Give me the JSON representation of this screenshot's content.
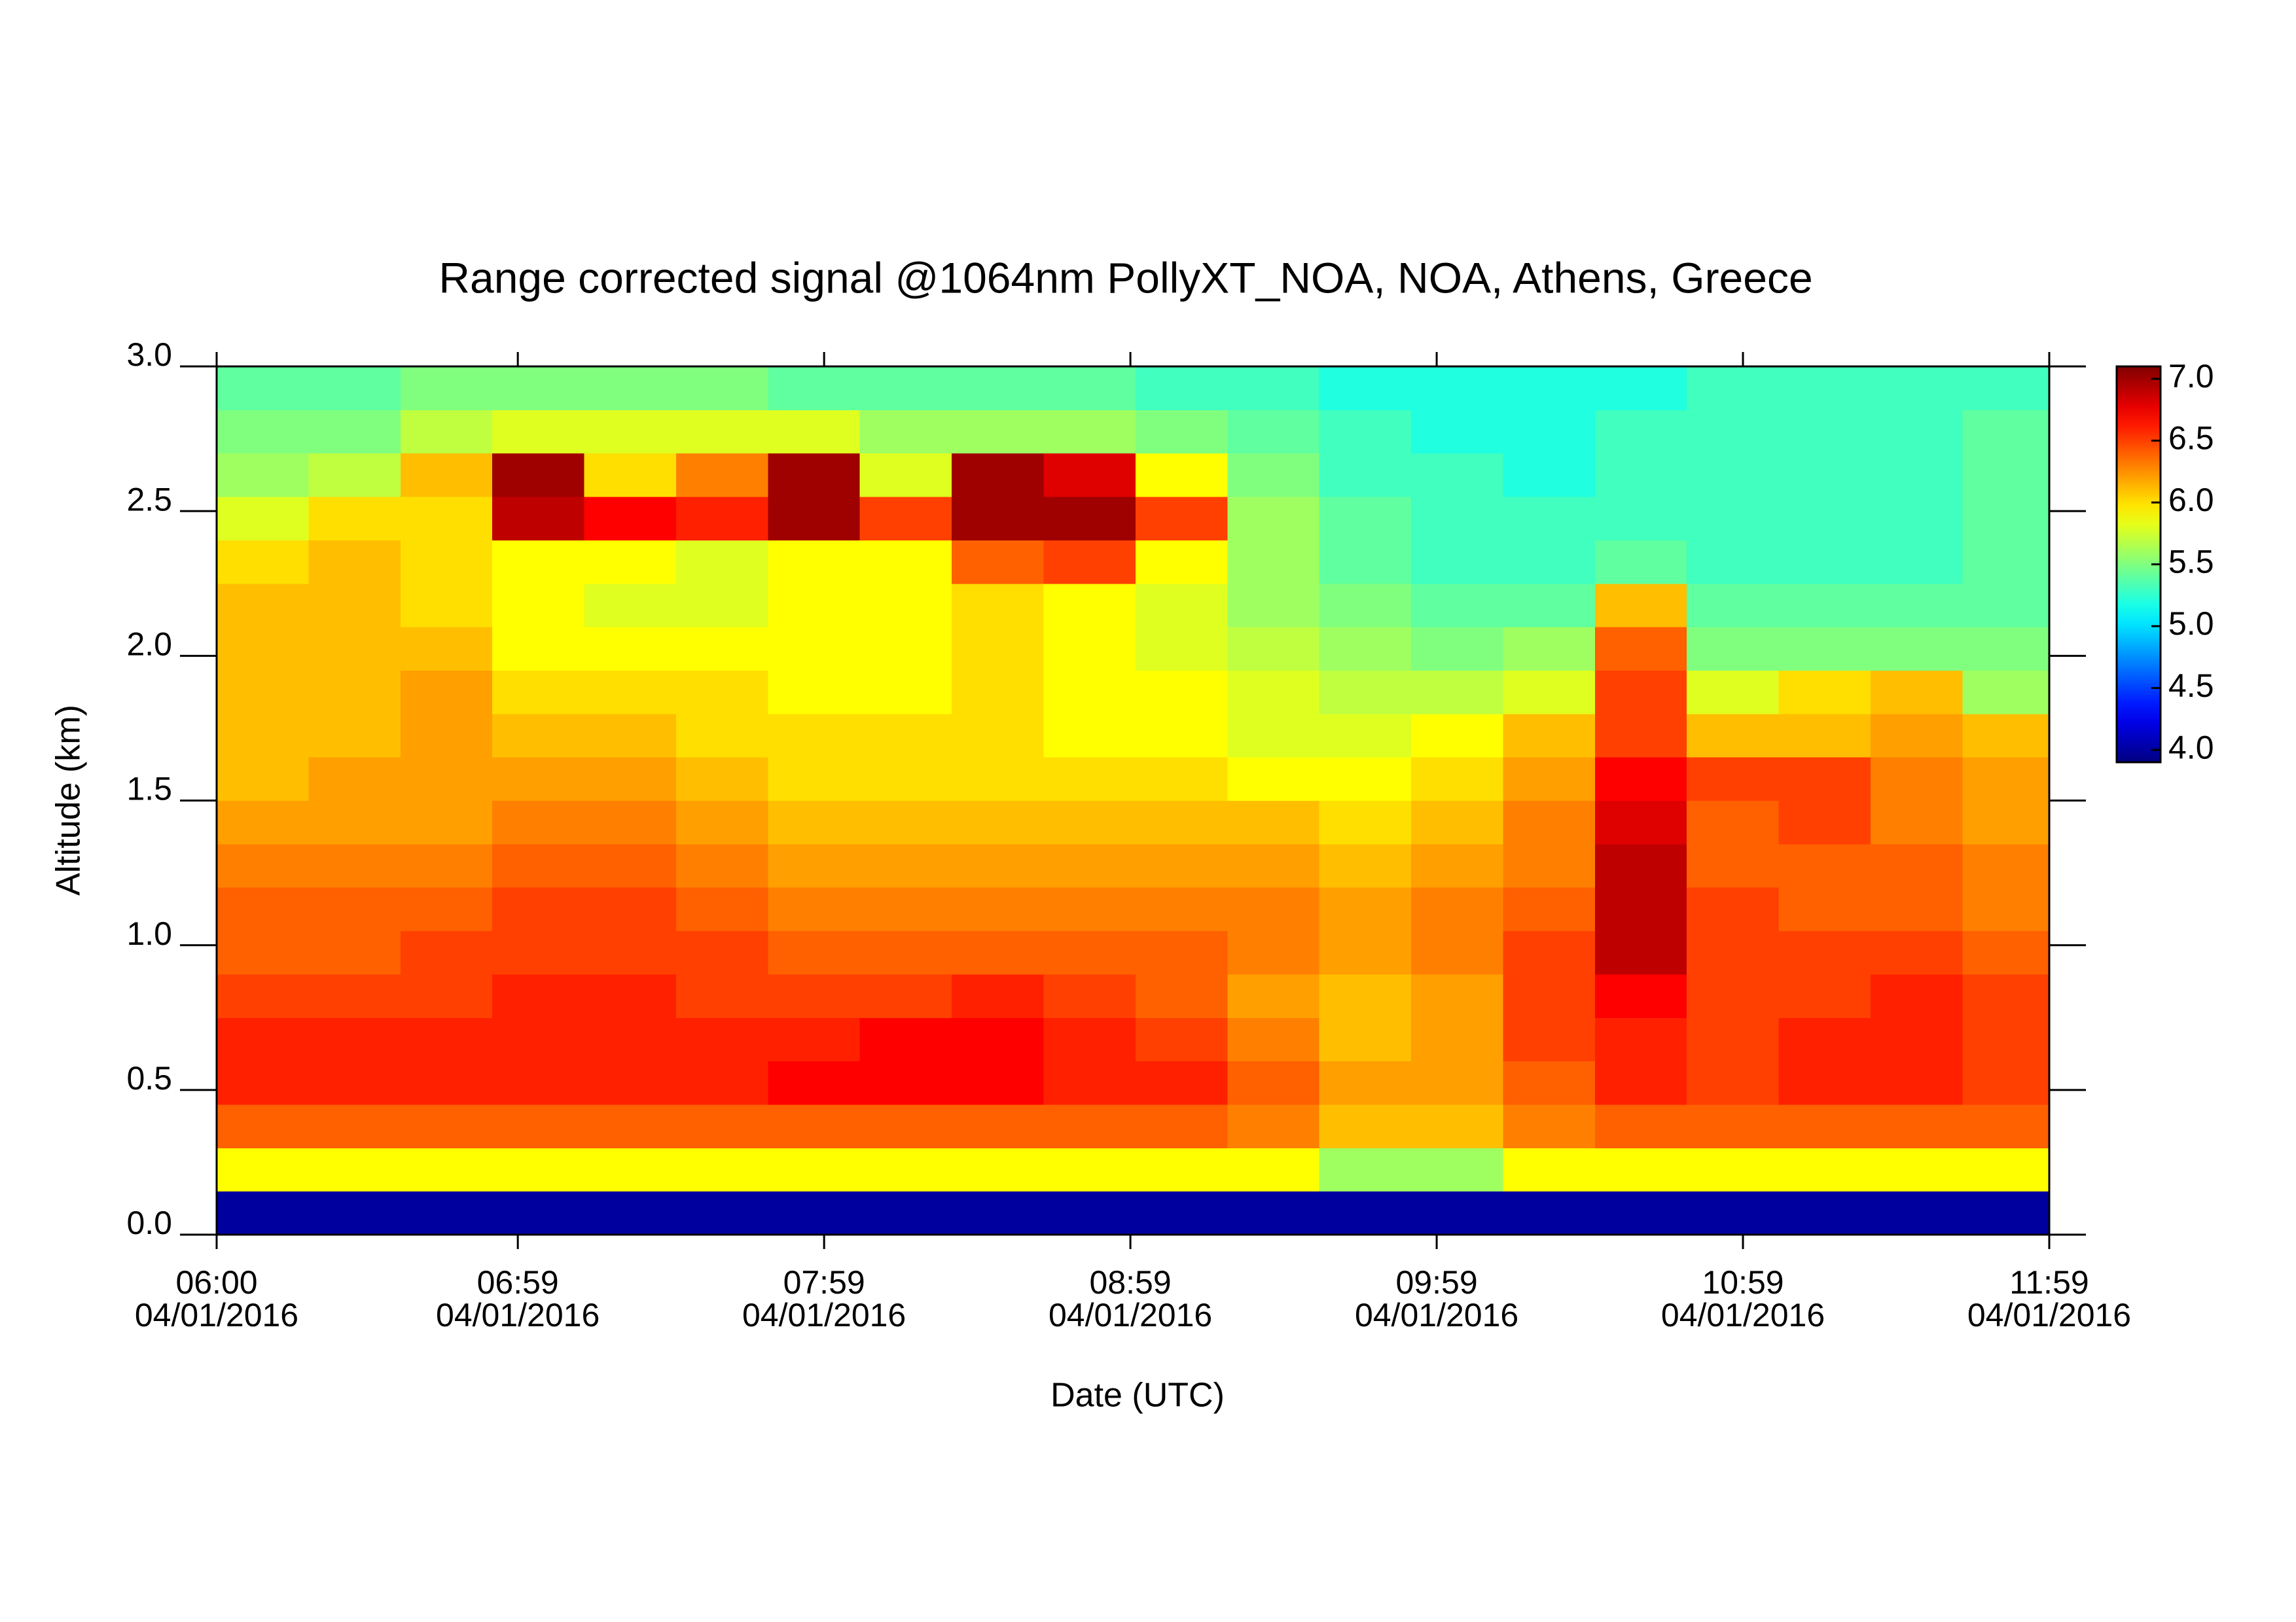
{
  "chart_data": {
    "type": "heatmap",
    "title": "Range corrected signal @1064nm  PollyXT_NOA, NOA, Athens, Greece",
    "xlabel": "Date (UTC)",
    "ylabel": "Altitude (km)",
    "colormap": "jet",
    "xlim": [
      "06:00",
      "11:59"
    ],
    "ylim": [
      0,
      3
    ],
    "xticks": [
      {
        "value": "06:00",
        "label": [
          "06:00",
          "04/01/2016"
        ]
      },
      {
        "value": "06:59",
        "label": [
          "06:59",
          "04/01/2016"
        ]
      },
      {
        "value": "07:59",
        "label": [
          "07:59",
          "04/01/2016"
        ]
      },
      {
        "value": "08:59",
        "label": [
          "08:59",
          "04/01/2016"
        ]
      },
      {
        "value": "09:59",
        "label": [
          "09:59",
          "04/01/2016"
        ]
      },
      {
        "value": "10:59",
        "label": [
          "10:59",
          "04/01/2016"
        ]
      },
      {
        "value": "11:59",
        "label": [
          "11:59",
          "04/01/2016"
        ]
      }
    ],
    "yticks": [
      {
        "value": 0,
        "label": "0.0"
      },
      0.5,
      {
        "value": 1,
        "label": "1.0"
      },
      1.5,
      {
        "value": 2,
        "label": "2.0"
      },
      2.5,
      {
        "value": 3,
        "label": "3.0"
      }
    ],
    "zlim": [
      3.9,
      7.1
    ],
    "zticks": [
      {
        "value": 4,
        "label": "4.0"
      },
      4.5,
      {
        "value": 5,
        "label": "5.0"
      },
      5.5,
      {
        "value": 6,
        "label": "6.0"
      },
      6.5,
      {
        "value": 7,
        "label": "7.0"
      }
    ],
    "x": [
      "06:00",
      "06:18",
      "06:36",
      "06:54",
      "07:12",
      "07:30",
      "07:48",
      "08:06",
      "08:24",
      "08:42",
      "09:00",
      "09:18",
      "09:36",
      "09:54",
      "10:12",
      "10:30",
      "10:48",
      "11:06",
      "11:24",
      "11:42"
    ],
    "y": [
      0,
      0.15,
      0.3,
      0.45,
      0.6,
      0.75,
      0.9,
      1.05,
      1.2,
      1.35,
      1.5,
      1.65,
      1.8,
      1.95,
      2.1,
      2.25,
      2.4,
      2.55,
      2.7,
      2.85
    ],
    "z": [
      [
        4.0,
        4.0,
        4.0,
        4.0,
        4.0,
        4.0,
        4.0,
        4.0,
        4.0,
        4.0,
        4.0,
        4.0,
        4.0,
        4.0,
        4.0,
        4.0,
        4.0,
        4.0,
        4.0,
        4.0
      ],
      [
        5.9,
        5.9,
        5.9,
        5.9,
        5.9,
        5.9,
        5.9,
        5.9,
        5.9,
        5.9,
        5.9,
        5.9,
        5.6,
        5.6,
        5.9,
        5.9,
        5.9,
        5.9,
        5.9,
        5.9
      ],
      [
        6.4,
        6.4,
        6.4,
        6.4,
        6.4,
        6.4,
        6.4,
        6.4,
        6.4,
        6.4,
        6.4,
        6.3,
        6.1,
        6.1,
        6.3,
        6.4,
        6.4,
        6.4,
        6.4,
        6.4
      ],
      [
        6.6,
        6.6,
        6.6,
        6.6,
        6.6,
        6.6,
        6.7,
        6.7,
        6.7,
        6.6,
        6.6,
        6.4,
        6.2,
        6.2,
        6.4,
        6.6,
        6.5,
        6.6,
        6.6,
        6.5
      ],
      [
        6.6,
        6.6,
        6.6,
        6.6,
        6.6,
        6.6,
        6.6,
        6.7,
        6.7,
        6.6,
        6.5,
        6.3,
        6.1,
        6.2,
        6.5,
        6.6,
        6.5,
        6.6,
        6.6,
        6.5
      ],
      [
        6.5,
        6.5,
        6.5,
        6.6,
        6.6,
        6.5,
        6.5,
        6.5,
        6.6,
        6.5,
        6.4,
        6.2,
        6.1,
        6.2,
        6.5,
        6.7,
        6.5,
        6.5,
        6.6,
        6.5
      ],
      [
        6.4,
        6.4,
        6.5,
        6.5,
        6.5,
        6.5,
        6.4,
        6.4,
        6.4,
        6.4,
        6.4,
        6.3,
        6.2,
        6.3,
        6.5,
        6.9,
        6.5,
        6.5,
        6.5,
        6.4
      ],
      [
        6.4,
        6.4,
        6.4,
        6.5,
        6.5,
        6.4,
        6.3,
        6.3,
        6.3,
        6.3,
        6.3,
        6.3,
        6.2,
        6.3,
        6.4,
        6.9,
        6.5,
        6.4,
        6.4,
        6.3
      ],
      [
        6.3,
        6.3,
        6.3,
        6.4,
        6.4,
        6.3,
        6.2,
        6.2,
        6.2,
        6.2,
        6.2,
        6.2,
        6.1,
        6.2,
        6.3,
        6.9,
        6.4,
        6.4,
        6.4,
        6.3
      ],
      [
        6.2,
        6.2,
        6.2,
        6.3,
        6.3,
        6.2,
        6.1,
        6.1,
        6.1,
        6.1,
        6.1,
        6.1,
        6.0,
        6.1,
        6.3,
        6.8,
        6.4,
        6.5,
        6.3,
        6.2
      ],
      [
        6.1,
        6.2,
        6.2,
        6.2,
        6.2,
        6.1,
        6.0,
        6.0,
        6.0,
        6.0,
        6.0,
        5.9,
        5.9,
        6.0,
        6.2,
        6.7,
        6.5,
        6.5,
        6.3,
        6.2
      ],
      [
        6.1,
        6.1,
        6.2,
        6.1,
        6.1,
        6.0,
        6.0,
        6.0,
        6.0,
        5.9,
        5.9,
        5.8,
        5.8,
        5.9,
        6.1,
        6.5,
        6.1,
        6.1,
        6.2,
        6.1
      ],
      [
        6.1,
        6.1,
        6.2,
        6.0,
        6.0,
        6.0,
        5.9,
        5.9,
        6.0,
        5.9,
        5.9,
        5.8,
        5.7,
        5.7,
        5.8,
        6.5,
        5.8,
        6.0,
        6.1,
        5.6
      ],
      [
        6.1,
        6.1,
        6.1,
        5.9,
        5.9,
        5.9,
        5.9,
        5.9,
        6.0,
        5.9,
        5.8,
        5.7,
        5.6,
        5.5,
        5.6,
        6.4,
        5.5,
        5.5,
        5.5,
        5.5
      ],
      [
        6.1,
        6.1,
        6.0,
        5.9,
        5.8,
        5.8,
        5.9,
        5.9,
        6.0,
        5.9,
        5.8,
        5.6,
        5.5,
        5.4,
        5.4,
        6.1,
        5.4,
        5.4,
        5.4,
        5.4
      ],
      [
        6.0,
        6.1,
        6.0,
        5.9,
        5.9,
        5.8,
        5.9,
        5.9,
        6.4,
        6.5,
        5.9,
        5.6,
        5.4,
        5.3,
        5.3,
        5.4,
        5.3,
        5.3,
        5.3,
        5.4
      ],
      [
        5.8,
        6.0,
        6.0,
        6.9,
        6.7,
        6.6,
        7.0,
        6.5,
        7.0,
        7.0,
        6.5,
        5.6,
        5.4,
        5.3,
        5.3,
        5.3,
        5.3,
        5.3,
        5.3,
        5.4
      ],
      [
        5.6,
        5.7,
        6.1,
        7.0,
        6.0,
        6.3,
        7.0,
        5.8,
        7.0,
        6.8,
        5.9,
        5.5,
        5.3,
        5.3,
        5.2,
        5.3,
        5.3,
        5.3,
        5.3,
        5.4
      ],
      [
        5.5,
        5.5,
        5.7,
        5.8,
        5.8,
        5.8,
        5.8,
        5.6,
        5.6,
        5.6,
        5.5,
        5.4,
        5.3,
        5.2,
        5.2,
        5.3,
        5.3,
        5.3,
        5.3,
        5.4
      ],
      [
        5.4,
        5.4,
        5.5,
        5.5,
        5.5,
        5.5,
        5.4,
        5.4,
        5.4,
        5.4,
        5.3,
        5.3,
        5.2,
        5.2,
        5.2,
        5.2,
        5.3,
        5.3,
        5.3,
        5.3
      ]
    ]
  }
}
